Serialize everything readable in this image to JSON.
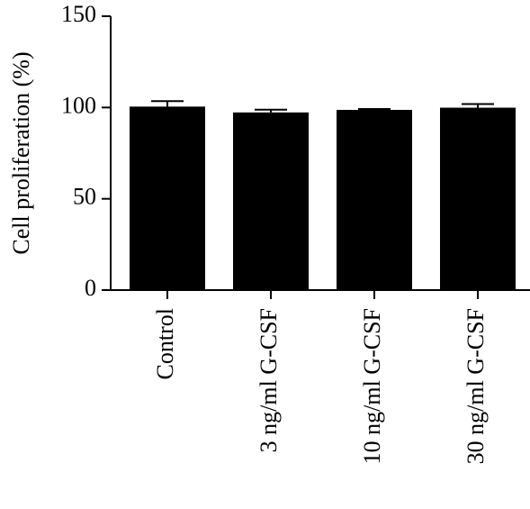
{
  "chart_data": {
    "type": "bar",
    "y_label": "Cell proliferation (%)",
    "categories": [
      "Control",
      "3 ng/ml G-CSF",
      "10 ng/ml G-CSF",
      "30 ng/ml G-CSF"
    ],
    "values": [
      100.5,
      97.3,
      98.7,
      99.9
    ],
    "errors": [
      3,
      1.5,
      0.5,
      2
    ],
    "color": "#000000",
    "ylim": [
      0,
      150
    ],
    "yticks": [
      0,
      50,
      100,
      150
    ],
    "grid": false
  }
}
